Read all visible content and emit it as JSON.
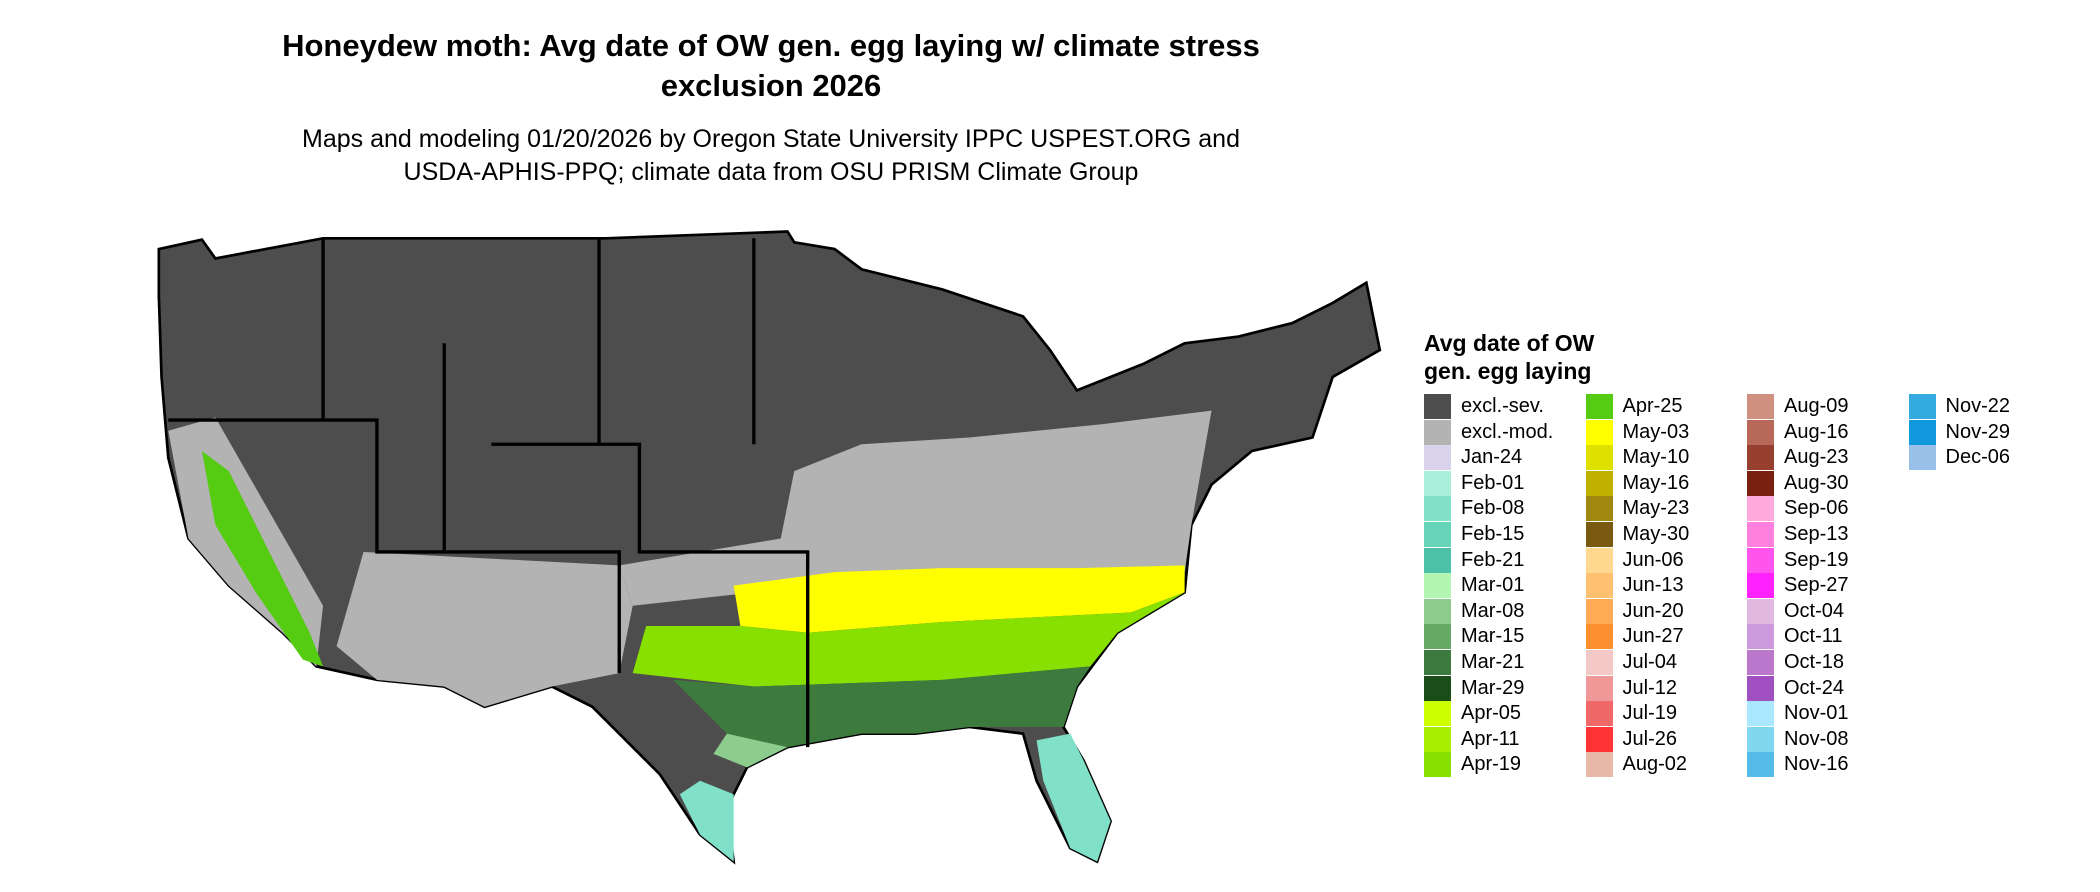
{
  "title": [
    "Honeydew moth: Avg date of OW gen. egg laying w/ climate stress",
    "exclusion 2026"
  ],
  "subtitle": [
    "Maps and modeling 01/20/2026 by Oregon State University IPPC USPEST.ORG and",
    "USDA-APHIS-PPQ; climate data from OSU PRISM Climate Group"
  ],
  "legend": {
    "title": [
      "Avg date of OW",
      "gen. egg laying"
    ],
    "items": [
      {
        "label": "excl.-sev.",
        "color": "#4d4d4d"
      },
      {
        "label": "excl.-mod.",
        "color": "#b3b3b3"
      },
      {
        "label": "Jan-24",
        "color": "#d9d2ea"
      },
      {
        "label": "Feb-01",
        "color": "#a8f0dc"
      },
      {
        "label": "Feb-08",
        "color": "#80e0c8"
      },
      {
        "label": "Feb-15",
        "color": "#66d4b8"
      },
      {
        "label": "Feb-21",
        "color": "#4dc0a8"
      },
      {
        "label": "Mar-01",
        "color": "#b3f5b3"
      },
      {
        "label": "Mar-08",
        "color": "#8ccc8c"
      },
      {
        "label": "Mar-15",
        "color": "#66a866"
      },
      {
        "label": "Mar-21",
        "color": "#3d7a3d"
      },
      {
        "label": "Mar-29",
        "color": "#1a4d1a"
      },
      {
        "label": "Apr-05",
        "color": "#ccff00"
      },
      {
        "label": "Apr-11",
        "color": "#a8ee00"
      },
      {
        "label": "Apr-19",
        "color": "#88e000"
      },
      {
        "label": "Apr-25",
        "color": "#55cc11"
      },
      {
        "label": "May-03",
        "color": "#ffff00"
      },
      {
        "label": "May-10",
        "color": "#e0e000"
      },
      {
        "label": "May-16",
        "color": "#c0b000"
      },
      {
        "label": "May-23",
        "color": "#a08810"
      },
      {
        "label": "May-30",
        "color": "#7a5a10"
      },
      {
        "label": "Jun-06",
        "color": "#ffd890"
      },
      {
        "label": "Jun-13",
        "color": "#ffc070"
      },
      {
        "label": "Jun-20",
        "color": "#ffaa55"
      },
      {
        "label": "Jun-27",
        "color": "#ff9030"
      },
      {
        "label": "Jul-04",
        "color": "#f5c8c8"
      },
      {
        "label": "Jul-12",
        "color": "#f09898"
      },
      {
        "label": "Jul-19",
        "color": "#f06868"
      },
      {
        "label": "Jul-26",
        "color": "#ff3333"
      },
      {
        "label": "Aug-02",
        "color": "#e8b8a8"
      },
      {
        "label": "Aug-09",
        "color": "#d09080"
      },
      {
        "label": "Aug-16",
        "color": "#b86858"
      },
      {
        "label": "Aug-23",
        "color": "#984030"
      },
      {
        "label": "Aug-30",
        "color": "#7a2010"
      },
      {
        "label": "Sep-06",
        "color": "#ffaadd"
      },
      {
        "label": "Sep-13",
        "color": "#ff80dd"
      },
      {
        "label": "Sep-19",
        "color": "#ff55ee"
      },
      {
        "label": "Sep-27",
        "color": "#ff22ff"
      },
      {
        "label": "Oct-04",
        "color": "#e0b8e0"
      },
      {
        "label": "Oct-11",
        "color": "#cc99dd"
      },
      {
        "label": "Oct-18",
        "color": "#bb77cc"
      },
      {
        "label": "Oct-24",
        "color": "#a050c0"
      },
      {
        "label": "Nov-01",
        "color": "#aae8ff"
      },
      {
        "label": "Nov-08",
        "color": "#80d8f0"
      },
      {
        "label": "Nov-16",
        "color": "#55bbe8"
      },
      {
        "label": "Nov-22",
        "color": "#33aae0"
      },
      {
        "label": "Nov-29",
        "color": "#1199dd"
      },
      {
        "label": "Dec-06",
        "color": "#99c0e8"
      }
    ]
  }
}
